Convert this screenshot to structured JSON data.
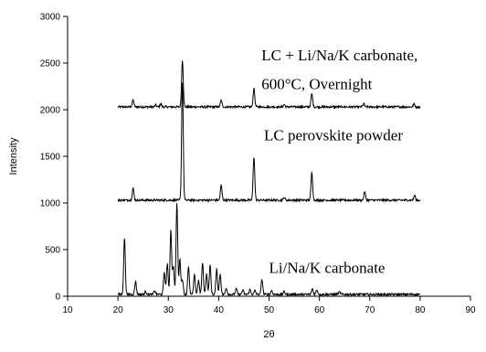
{
  "chart_data": {
    "type": "line",
    "title": "",
    "xlabel": "2θ",
    "ylabel": "Intensity",
    "xlim": [
      10,
      90
    ],
    "ylim": [
      0,
      3000
    ],
    "xticks": [
      10,
      20,
      30,
      40,
      50,
      60,
      70,
      80,
      90
    ],
    "yticks": [
      0,
      500,
      1000,
      1500,
      2000,
      2500,
      3000
    ],
    "grid": false,
    "annotations": [
      {
        "text": "LC + Li/Na/K carbonate,",
        "x": 48.5,
        "y": 2530
      },
      {
        "text": "600°C, Overnight",
        "x": 48.5,
        "y": 2220
      },
      {
        "text": "LC perovskite powder",
        "x": 49,
        "y": 1670
      },
      {
        "text": "Li/Na/K carbonate",
        "x": 50,
        "y": 250
      }
    ],
    "series": [
      {
        "color": "#000000",
        "baseline": 2030,
        "peaks": [
          {
            "x": 23.0,
            "h": 75
          },
          {
            "x": 27.5,
            "h": 20
          },
          {
            "x": 28.5,
            "h": 35
          },
          {
            "x": 32.8,
            "h": 505
          },
          {
            "x": 40.5,
            "h": 70
          },
          {
            "x": 47.0,
            "h": 200
          },
          {
            "x": 53.0,
            "h": 25
          },
          {
            "x": 58.5,
            "h": 140
          },
          {
            "x": 68.8,
            "h": 35
          },
          {
            "x": 78.8,
            "h": 30
          }
        ]
      },
      {
        "color": "#000000",
        "baseline": 1030,
        "peaks": [
          {
            "x": 23.0,
            "h": 130
          },
          {
            "x": 32.8,
            "h": 1270
          },
          {
            "x": 40.5,
            "h": 160
          },
          {
            "x": 47.0,
            "h": 470
          },
          {
            "x": 53.0,
            "h": 30
          },
          {
            "x": 58.5,
            "h": 300
          },
          {
            "x": 69.0,
            "h": 90
          },
          {
            "x": 78.9,
            "h": 50
          }
        ]
      },
      {
        "color": "#000000",
        "baseline": 20,
        "peaks": [
          {
            "x": 21.3,
            "h": 610
          },
          {
            "x": 23.5,
            "h": 140
          },
          {
            "x": 25.5,
            "h": 30
          },
          {
            "x": 27.3,
            "h": 40
          },
          {
            "x": 29.2,
            "h": 240
          },
          {
            "x": 29.8,
            "h": 330
          },
          {
            "x": 30.5,
            "h": 690
          },
          {
            "x": 31.0,
            "h": 300
          },
          {
            "x": 31.7,
            "h": 980
          },
          {
            "x": 32.3,
            "h": 380
          },
          {
            "x": 32.8,
            "h": 160
          },
          {
            "x": 34.0,
            "h": 300
          },
          {
            "x": 35.2,
            "h": 210
          },
          {
            "x": 36.0,
            "h": 150
          },
          {
            "x": 36.8,
            "h": 340
          },
          {
            "x": 37.6,
            "h": 220
          },
          {
            "x": 38.3,
            "h": 310
          },
          {
            "x": 39.6,
            "h": 270
          },
          {
            "x": 40.3,
            "h": 220
          },
          {
            "x": 41.5,
            "h": 70
          },
          {
            "x": 43.5,
            "h": 60
          },
          {
            "x": 44.8,
            "h": 45
          },
          {
            "x": 46.2,
            "h": 50
          },
          {
            "x": 47.2,
            "h": 40
          },
          {
            "x": 48.6,
            "h": 160
          },
          {
            "x": 50.5,
            "h": 40
          },
          {
            "x": 53.0,
            "h": 30
          },
          {
            "x": 58.6,
            "h": 60
          },
          {
            "x": 59.5,
            "h": 50
          },
          {
            "x": 64.0,
            "h": 25
          }
        ]
      }
    ]
  }
}
